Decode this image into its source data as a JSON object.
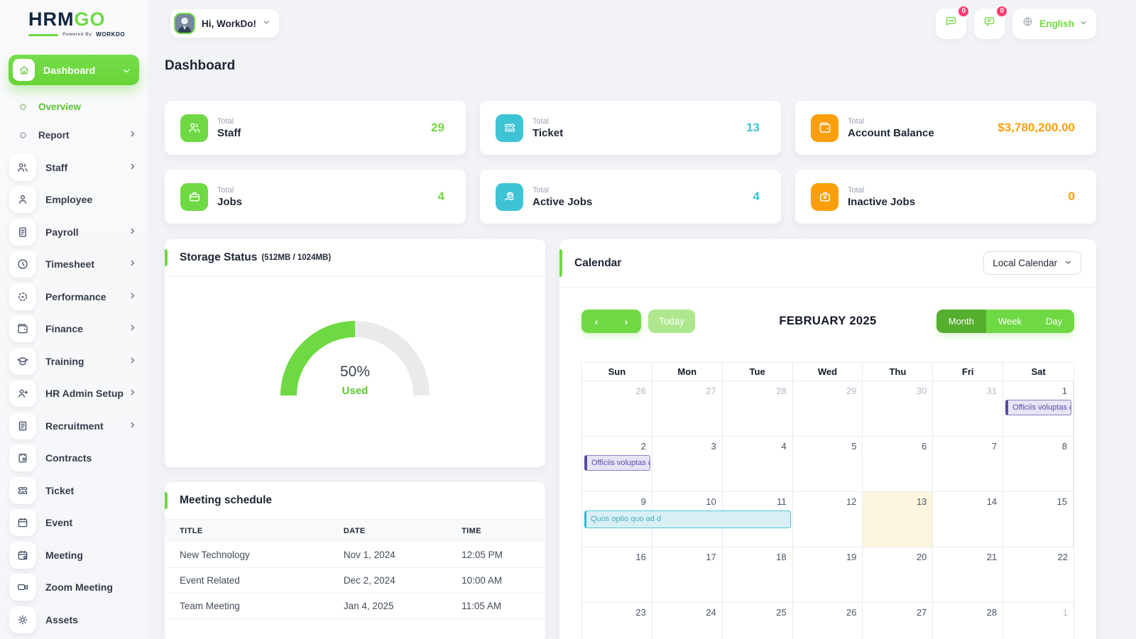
{
  "brand": {
    "logo_primary": "HRM",
    "logo_secondary": "GO",
    "powered_by": "Powered By",
    "powered_brand": "WORKDO"
  },
  "topbar": {
    "greeting": "Hi, WorkDo!",
    "language": "English",
    "messenger_badge": "0",
    "notifications_badge": "0"
  },
  "page": {
    "title": "Dashboard"
  },
  "sidebar": {
    "active_item": {
      "label": "Dashboard",
      "icon": "home-icon"
    },
    "sub_items": [
      {
        "label": "Overview",
        "active": true,
        "expandable": false
      },
      {
        "label": "Report",
        "active": false,
        "expandable": true
      }
    ],
    "items": [
      {
        "label": "Staff",
        "icon": "staff-icon",
        "expandable": true
      },
      {
        "label": "Employee",
        "icon": "employee-icon",
        "expandable": false
      },
      {
        "label": "Payroll",
        "icon": "payroll-icon",
        "expandable": true
      },
      {
        "label": "Timesheet",
        "icon": "timesheet-icon",
        "expandable": true
      },
      {
        "label": "Performance",
        "icon": "performance-icon",
        "expandable": true
      },
      {
        "label": "Finance",
        "icon": "finance-icon",
        "expandable": true
      },
      {
        "label": "Training",
        "icon": "training-icon",
        "expandable": true
      },
      {
        "label": "HR Admin Setup",
        "icon": "hr-admin-setup-icon",
        "expandable": true
      },
      {
        "label": "Recruitment",
        "icon": "recruitment-icon",
        "expandable": true
      },
      {
        "label": "Contracts",
        "icon": "contracts-icon",
        "expandable": false
      },
      {
        "label": "Ticket",
        "icon": "ticket-icon",
        "expandable": false
      },
      {
        "label": "Event",
        "icon": "event-icon",
        "expandable": false
      },
      {
        "label": "Meeting",
        "icon": "meeting-icon",
        "expandable": false
      },
      {
        "label": "Zoom Meeting",
        "icon": "zoom-meeting-icon",
        "expandable": false
      },
      {
        "label": "Assets",
        "icon": "assets-icon",
        "expandable": false
      }
    ]
  },
  "stat_cards": [
    {
      "label_top": "Total",
      "label": "Staff",
      "value": "29",
      "icon": "staff-icon",
      "color": "green"
    },
    {
      "label_top": "Total",
      "label": "Ticket",
      "value": "13",
      "icon": "ticket-icon",
      "color": "cyan"
    },
    {
      "label_top": "Total",
      "label": "Account Balance",
      "value": "$3,780,200.00",
      "icon": "wallet-icon",
      "color": "orange"
    },
    {
      "label_top": "Total",
      "label": "Jobs",
      "value": "4",
      "icon": "briefcase-icon",
      "color": "green"
    },
    {
      "label_top": "Total",
      "label": "Active Jobs",
      "value": "4",
      "icon": "job-offer-icon",
      "color": "cyan"
    },
    {
      "label_top": "Total",
      "label": "Inactive Jobs",
      "value": "0",
      "icon": "briefcase-x-icon",
      "color": "orange"
    }
  ],
  "storage": {
    "title": "Storage Status",
    "subtitle": "(512MB / 1024MB)",
    "percent_label": "50%",
    "used_label": "Used",
    "percent_value": 50
  },
  "meeting_schedule": {
    "title": "Meeting schedule",
    "columns": [
      "TITLE",
      "DATE",
      "TIME"
    ],
    "rows": [
      {
        "title": "New Technology",
        "date": "Nov 1, 2024",
        "time": "12:05 PM"
      },
      {
        "title": "Event Related",
        "date": "Dec 2, 2024",
        "time": "10:00 AM"
      },
      {
        "title": "Team Meeting",
        "date": "Jan 4, 2025",
        "time": "11:05 AM"
      }
    ]
  },
  "calendar": {
    "title": "Calendar",
    "source_select": "Local Calendar",
    "nav_prev": "‹",
    "nav_next": "›",
    "today_label": "Today",
    "month_title": "FEBRUARY 2025",
    "views": [
      {
        "label": "Month",
        "active": true
      },
      {
        "label": "Week",
        "active": false
      },
      {
        "label": "Day",
        "active": false
      }
    ],
    "day_headers": [
      "Sun",
      "Mon",
      "Tue",
      "Wed",
      "Thu",
      "Fri",
      "Sat"
    ],
    "weeks": [
      {
        "days": [
          {
            "n": "26",
            "muted": true
          },
          {
            "n": "27",
            "muted": true
          },
          {
            "n": "28",
            "muted": true
          },
          {
            "n": "29",
            "muted": true
          },
          {
            "n": "30",
            "muted": true
          },
          {
            "n": "31",
            "muted": true
          },
          {
            "n": "1"
          }
        ],
        "events": [
          {
            "col": 6,
            "span": 1,
            "label": "Officiis voluptas c",
            "color": "purple"
          }
        ]
      },
      {
        "days": [
          {
            "n": "2"
          },
          {
            "n": "3"
          },
          {
            "n": "4"
          },
          {
            "n": "5"
          },
          {
            "n": "6"
          },
          {
            "n": "7"
          },
          {
            "n": "8"
          }
        ],
        "events": [
          {
            "col": 0,
            "span": 1,
            "label": "Officiis voluptas c",
            "color": "purple"
          }
        ]
      },
      {
        "days": [
          {
            "n": "9"
          },
          {
            "n": "10"
          },
          {
            "n": "11"
          },
          {
            "n": "12"
          },
          {
            "n": "13",
            "today": true
          },
          {
            "n": "14"
          },
          {
            "n": "15"
          }
        ],
        "events": [
          {
            "col": 0,
            "span": 3,
            "label": "Quos optio quo ad d",
            "color": "cyan"
          }
        ]
      },
      {
        "days": [
          {
            "n": "16"
          },
          {
            "n": "17"
          },
          {
            "n": "18"
          },
          {
            "n": "19"
          },
          {
            "n": "20"
          },
          {
            "n": "21"
          },
          {
            "n": "22"
          }
        ],
        "events": []
      },
      {
        "days": [
          {
            "n": "23"
          },
          {
            "n": "24"
          },
          {
            "n": "25"
          },
          {
            "n": "26"
          },
          {
            "n": "27"
          },
          {
            "n": "28"
          },
          {
            "n": "1",
            "muted": true
          }
        ],
        "events": []
      }
    ]
  },
  "colors": {
    "primary_green": "#6fd943",
    "green_dark": "#55ae2d",
    "green_light": "#aee78d",
    "cyan": "#3ec3d5",
    "orange": "#fb9e0c",
    "badge_pink": "#ff3a6e",
    "event_purple": "#564aa0",
    "event_cyan": "#35b7cb",
    "today_bg": "#fdf6de"
  }
}
